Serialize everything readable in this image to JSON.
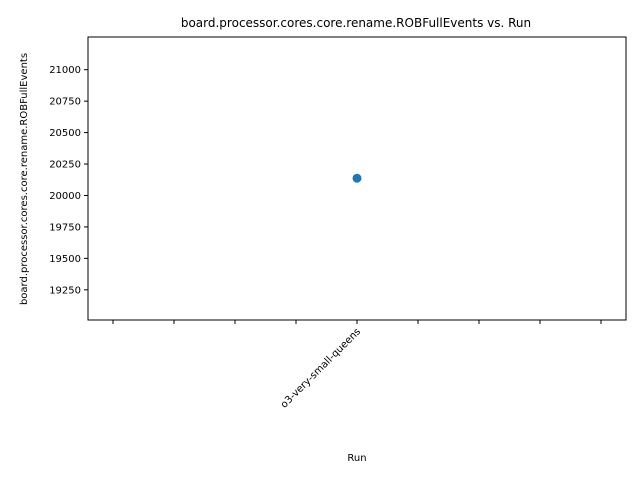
{
  "chart_data": {
    "type": "scatter",
    "title": "board.processor.cores.core.rename.ROBFullEvents vs. Run",
    "xlabel": "Run",
    "ylabel": "board.processor.cores.core.rename.ROBFullEvents",
    "x_categories": [
      "",
      "",
      "",
      "",
      "o3-very-small-queens",
      "",
      "",
      "",
      ""
    ],
    "points": [
      {
        "x": "o3-very-small-queens",
        "y": 20137
      }
    ],
    "ylim": [
      19010,
      21260
    ],
    "yticks": [
      19250,
      19500,
      19750,
      20000,
      20250,
      20500,
      20750,
      21000
    ],
    "grid": false,
    "marker_color": "#1f77b4"
  }
}
